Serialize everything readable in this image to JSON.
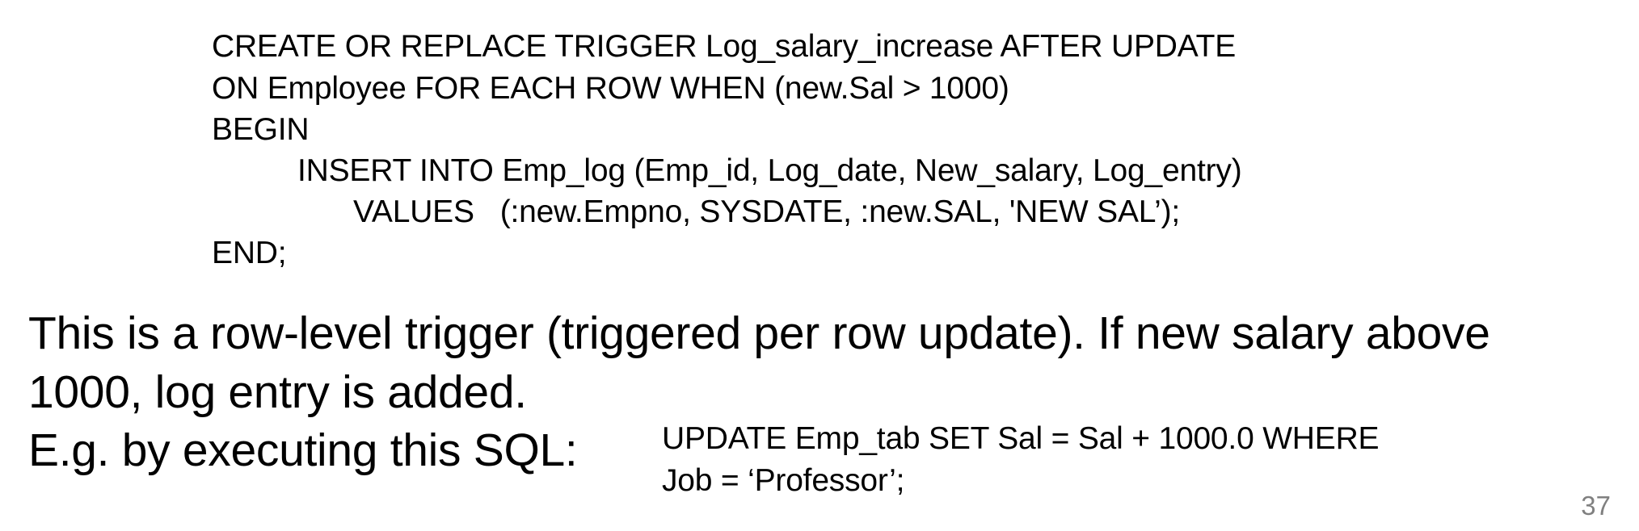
{
  "code_block": {
    "lines": [
      "CREATE OR REPLACE TRIGGER Log_salary_increase AFTER UPDATE",
      "ON Employee FOR EACH ROW WHEN (new.Sal > 1000)",
      "BEGIN",
      "INSERT INTO Emp_log (Emp_id, Log_date, New_salary, Log_entry)",
      "VALUES   (:new.Empno, SYSDATE, :new.SAL, 'NEW SAL’);",
      "END;"
    ]
  },
  "explanation": {
    "line1": "This is a row-level trigger (triggered per row update). If new salary above",
    "line2": "1000, log entry is added.",
    "line3": "E.g. by executing this SQL:"
  },
  "example_sql": {
    "line1": "UPDATE Emp_tab SET Sal = Sal + 1000.0 WHERE",
    "line2": "Job = ‘Professor’;"
  },
  "slide_number": "37"
}
